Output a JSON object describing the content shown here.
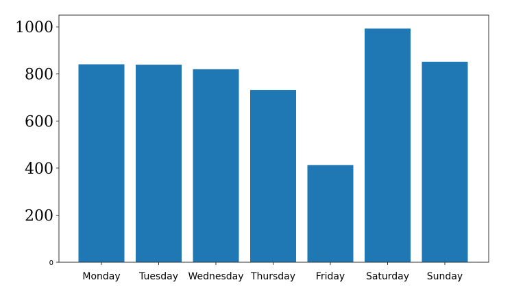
{
  "chart_data": {
    "type": "bar",
    "title": "",
    "xlabel": "",
    "ylabel": "",
    "categories": [
      "Monday",
      "Tuesday",
      "Wednesday",
      "Thursday",
      "Friday",
      "Saturday",
      "Sunday"
    ],
    "values": [
      841,
      839,
      820,
      732,
      413,
      993,
      852
    ],
    "ylim": [
      0,
      1050
    ],
    "yticks": [
      0,
      200,
      400,
      600,
      800,
      1000
    ],
    "ytick_labels": [
      "0",
      "200",
      "400",
      "600",
      "800",
      "1000"
    ],
    "bar_color": "#1f77b4",
    "grid": false,
    "legend": "none"
  }
}
